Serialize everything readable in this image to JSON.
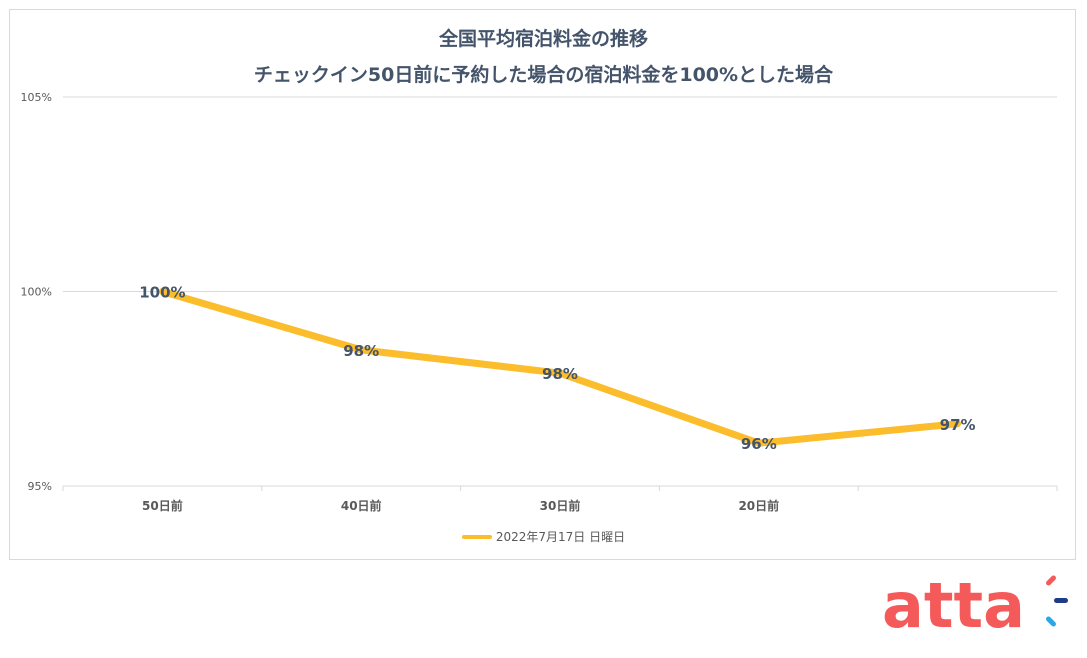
{
  "chart": {
    "title_line1": "全国平均宿泊料金の推移",
    "title_line2": "チェックイン50日前に予約した場合の宿泊料金を100%とした場合",
    "legend_label": "2022年7月17日 日曜日",
    "line_color": "#fbbd2b",
    "grid_color": "#d9d9d9",
    "axis_text_color": "#595959",
    "label_text_color": "#44546a"
  },
  "brand": {
    "name": "atta",
    "color": "#f55a5a",
    "accent_colors": [
      "#f55a5a",
      "#1f3c88",
      "#2aa7e8"
    ]
  },
  "chart_data": {
    "type": "line",
    "title": "全国平均宿泊料金の推移 チェックイン50日前に予約した場合の宿泊料金を100%とした場合",
    "xlabel": "",
    "ylabel": "",
    "categories": [
      "50日前",
      "40日前",
      "30日前",
      "20日前",
      ""
    ],
    "series": [
      {
        "name": "2022年7月17日 日曜日",
        "values": [
          100.0,
          98.5,
          97.9,
          96.1,
          96.6
        ],
        "data_labels": [
          "100%",
          "98%",
          "98%",
          "96%",
          "97%"
        ]
      }
    ],
    "ylim": [
      95,
      105
    ],
    "yticks": [
      95,
      100,
      105
    ],
    "ytick_labels": [
      "95%",
      "100%",
      "105%"
    ],
    "grid": "horizontal",
    "legend_position": "bottom"
  }
}
